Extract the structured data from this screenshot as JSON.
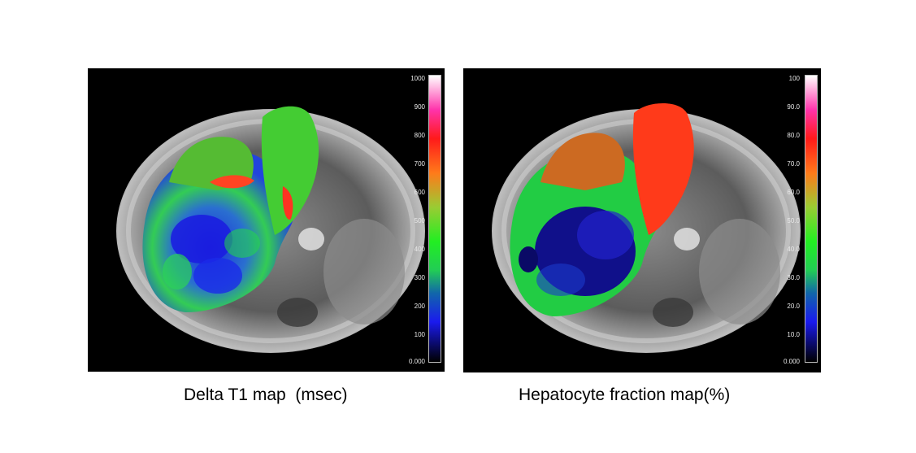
{
  "panels": [
    {
      "caption": "Delta T1 map  (msec)",
      "colorbar_labels": [
        "1000",
        "900",
        "800",
        "700",
        "600",
        "500",
        "400",
        "300",
        "200",
        "100",
        "0.000"
      ],
      "colormap": [
        "#ffffff",
        "#ff33aa",
        "#ff1a1a",
        "#ff7a1a",
        "#99cc33",
        "#22ee22",
        "#22cc55",
        "#1166aa",
        "#1a1aee",
        "#0a0a66",
        "#000000"
      ]
    },
    {
      "caption": "Hepatocyte fraction map(%)",
      "colorbar_labels": [
        "100",
        "90.0",
        "80.0",
        "70.0",
        "60.0",
        "50.0",
        "40.0",
        "30.0",
        "20.0",
        "10.0",
        "0.000"
      ],
      "colormap": [
        "#ffffff",
        "#ff33aa",
        "#ff1a1a",
        "#ff7a1a",
        "#99cc33",
        "#22ee22",
        "#22cc55",
        "#1166aa",
        "#1a1aee",
        "#0a0a66",
        "#000000"
      ]
    }
  ]
}
